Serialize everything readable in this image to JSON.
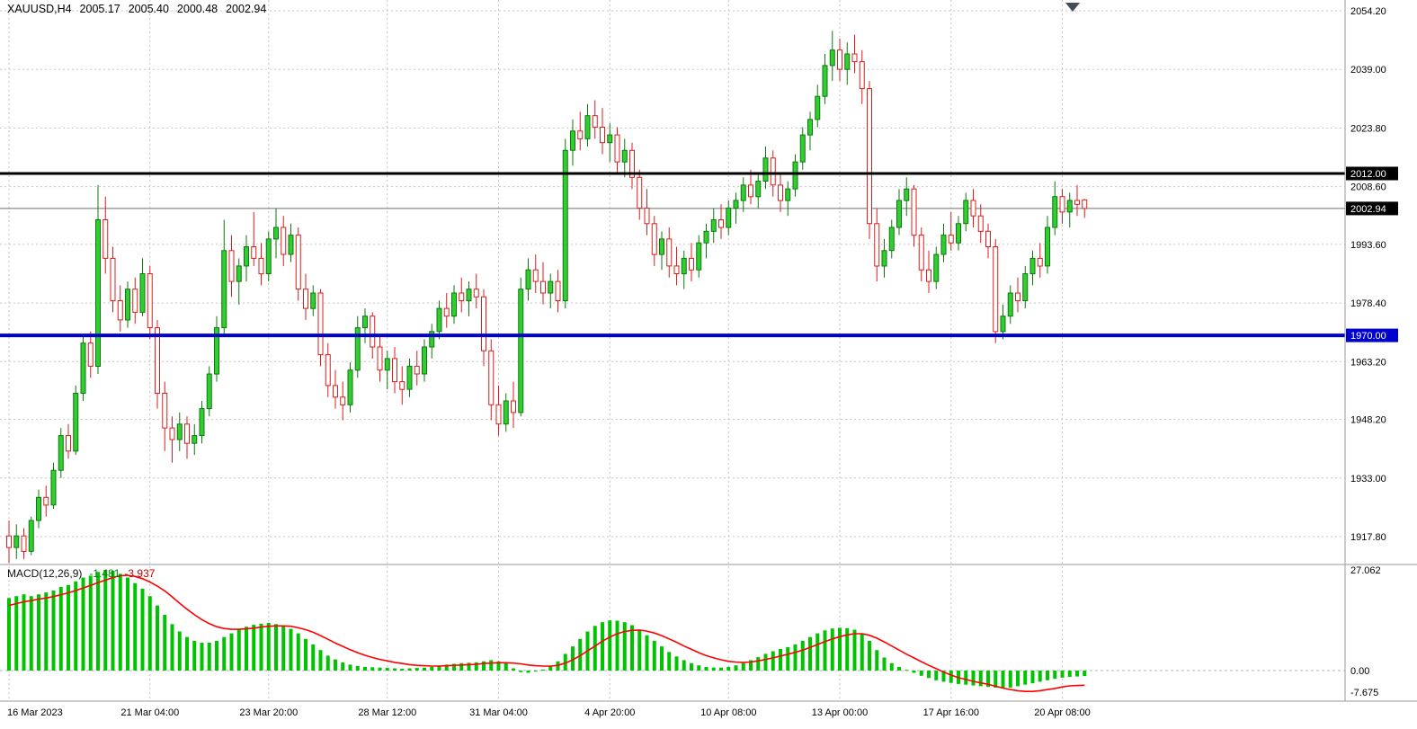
{
  "header": {
    "symbol_period": "XAUUSD,H4",
    "open": "2005.17",
    "high": "2005.40",
    "low": "2000.48",
    "close": "2002.94"
  },
  "macd_panel": {
    "label": "MACD(12,26,9)",
    "main_value": "-1.481",
    "signal_value": "-3.937"
  },
  "chart_data": {
    "type": "candlestick",
    "symbol": "XAUUSD",
    "timeframe": "H4",
    "grid": true,
    "ylim": [
      1911,
      2056
    ],
    "price_axis": {
      "ticks": [
        {
          "label": "2054.20",
          "price": 2054.2
        },
        {
          "label": "2039.00",
          "price": 2039.0
        },
        {
          "label": "2023.80",
          "price": 2023.8
        },
        {
          "label": "2008.60",
          "price": 2008.6
        },
        {
          "label": "1993.60",
          "price": 1993.6
        },
        {
          "label": "1978.40",
          "price": 1978.4
        },
        {
          "label": "1963.20",
          "price": 1963.2
        },
        {
          "label": "1948.20",
          "price": 1948.2
        },
        {
          "label": "1933.00",
          "price": 1933.0
        },
        {
          "label": "1917.80",
          "price": 1917.8
        }
      ]
    },
    "time_axis": {
      "labels": [
        {
          "bar": 0,
          "text": "16 Mar 2023"
        },
        {
          "bar": 19,
          "text": "21 Mar 04:00"
        },
        {
          "bar": 35,
          "text": "23 Mar 20:00"
        },
        {
          "bar": 51,
          "text": "28 Mar 12:00"
        },
        {
          "bar": 66,
          "text": "31 Mar 04:00"
        },
        {
          "bar": 81,
          "text": "4 Apr 20:00"
        },
        {
          "bar": 97,
          "text": "10 Apr 08:00"
        },
        {
          "bar": 112,
          "text": "13 Apr 00:00"
        },
        {
          "bar": 127,
          "text": "17 Apr 16:00"
        },
        {
          "bar": 142,
          "text": "20 Apr 08:00"
        }
      ]
    },
    "levels": [
      {
        "label": "2012.00",
        "price": 2012.0,
        "color": "#000000",
        "width": 3,
        "badge_bg": "#000000"
      },
      {
        "label": "1970.00",
        "price": 1970.0,
        "color": "#0101cd",
        "width": 4,
        "badge_bg": "#0101cd"
      }
    ],
    "last_price": {
      "label": "2002.94",
      "price": 2002.94,
      "line_color": "#6f6f6f",
      "badge_bg": "#000000"
    },
    "macd_axis": {
      "ticks": [
        {
          "label": "27.062",
          "value": 27.062
        },
        {
          "label": "0.00",
          "value": 0
        },
        {
          "label": "-7.675",
          "value": -7.675
        }
      ]
    },
    "candles": [
      [
        1918,
        1922,
        1911,
        1915
      ],
      [
        1915,
        1921,
        1912,
        1918
      ],
      [
        1918,
        1920,
        1912,
        1914
      ],
      [
        1914,
        1923,
        1913,
        1922
      ],
      [
        1922,
        1930,
        1920,
        1928
      ],
      [
        1928,
        1931,
        1923,
        1926
      ],
      [
        1926,
        1937,
        1925,
        1935
      ],
      [
        1935,
        1946,
        1933,
        1944
      ],
      [
        1944,
        1947,
        1938,
        1940
      ],
      [
        1940,
        1957,
        1939,
        1955
      ],
      [
        1955,
        1970,
        1953,
        1968
      ],
      [
        1968,
        1971,
        1959,
        1962
      ],
      [
        1962,
        2009,
        1960,
        2000
      ],
      [
        2000,
        2006,
        1986,
        1990
      ],
      [
        1990,
        1993,
        1976,
        1979
      ],
      [
        1979,
        1983,
        1971,
        1974
      ],
      [
        1974,
        1984,
        1972,
        1982
      ],
      [
        1982,
        1985,
        1973,
        1976
      ],
      [
        1976,
        1990,
        1975,
        1986
      ],
      [
        1986,
        1988,
        1969,
        1972
      ],
      [
        1972,
        1974,
        1951,
        1955
      ],
      [
        1955,
        1958,
        1940,
        1946
      ],
      [
        1946,
        1949,
        1937,
        1943
      ],
      [
        1943,
        1950,
        1940,
        1947
      ],
      [
        1947,
        1949,
        1938,
        1942
      ],
      [
        1942,
        1947,
        1939,
        1944
      ],
      [
        1944,
        1953,
        1942,
        1951
      ],
      [
        1951,
        1962,
        1949,
        1960
      ],
      [
        1960,
        1975,
        1958,
        1972
      ],
      [
        1972,
        2000,
        1970,
        1992
      ],
      [
        1992,
        1996,
        1980,
        1984
      ],
      [
        1984,
        1990,
        1978,
        1988
      ],
      [
        1988,
        1996,
        1984,
        1993
      ],
      [
        1993,
        2002,
        1988,
        1990
      ],
      [
        1990,
        1994,
        1983,
        1986
      ],
      [
        1986,
        1997,
        1984,
        1995
      ],
      [
        1995,
        2003,
        1990,
        1998
      ],
      [
        1998,
        2001,
        1988,
        1991
      ],
      [
        1991,
        1999,
        1989,
        1996
      ],
      [
        1996,
        1998,
        1979,
        1982
      ],
      [
        1982,
        1986,
        1974,
        1977
      ],
      [
        1977,
        1983,
        1975,
        1981
      ],
      [
        1981,
        1982,
        1962,
        1965
      ],
      [
        1965,
        1968,
        1954,
        1957
      ],
      [
        1957,
        1961,
        1951,
        1954
      ],
      [
        1954,
        1958,
        1948,
        1952
      ],
      [
        1952,
        1963,
        1950,
        1961
      ],
      [
        1961,
        1975,
        1959,
        1972
      ],
      [
        1972,
        1977,
        1968,
        1975
      ],
      [
        1975,
        1976,
        1964,
        1967
      ],
      [
        1967,
        1970,
        1958,
        1961
      ],
      [
        1961,
        1966,
        1956,
        1964
      ],
      [
        1964,
        1967,
        1955,
        1958
      ],
      [
        1958,
        1962,
        1952,
        1956
      ],
      [
        1956,
        1964,
        1954,
        1962
      ],
      [
        1962,
        1966,
        1957,
        1960
      ],
      [
        1960,
        1969,
        1958,
        1967
      ],
      [
        1967,
        1973,
        1964,
        1971
      ],
      [
        1971,
        1979,
        1969,
        1977
      ],
      [
        1977,
        1981,
        1972,
        1975
      ],
      [
        1975,
        1983,
        1973,
        1981
      ],
      [
        1981,
        1985,
        1976,
        1979
      ],
      [
        1979,
        1984,
        1975,
        1982
      ],
      [
        1982,
        1986,
        1977,
        1980
      ],
      [
        1980,
        1982,
        1962,
        1966
      ],
      [
        1966,
        1969,
        1948,
        1952
      ],
      [
        1952,
        1957,
        1944,
        1947
      ],
      [
        1947,
        1955,
        1945,
        1953
      ],
      [
        1953,
        1958,
        1946,
        1950
      ],
      [
        1950,
        1985,
        1949,
        1982
      ],
      [
        1982,
        1990,
        1979,
        1987
      ],
      [
        1987,
        1991,
        1981,
        1984
      ],
      [
        1984,
        1989,
        1978,
        1981
      ],
      [
        1981,
        1986,
        1977,
        1984
      ],
      [
        1984,
        1987,
        1976,
        1979
      ],
      [
        1979,
        2021,
        1977,
        2018
      ],
      [
        2018,
        2026,
        2014,
        2023
      ],
      [
        2023,
        2028,
        2018,
        2021
      ],
      [
        2021,
        2030,
        2019,
        2027
      ],
      [
        2027,
        2031,
        2021,
        2024
      ],
      [
        2024,
        2029,
        2017,
        2020
      ],
      [
        2020,
        2025,
        2015,
        2022
      ],
      [
        2022,
        2024,
        2012,
        2015
      ],
      [
        2015,
        2021,
        2011,
        2018
      ],
      [
        2018,
        2020,
        2008,
        2011
      ],
      [
        2011,
        2013,
        2000,
        2003
      ],
      [
        2003,
        2008,
        1996,
        1999
      ],
      [
        1999,
        2001,
        1988,
        1991
      ],
      [
        1991,
        1997,
        1987,
        1995
      ],
      [
        1995,
        1998,
        1985,
        1988
      ],
      [
        1988,
        1993,
        1983,
        1986
      ],
      [
        1986,
        1992,
        1982,
        1990
      ],
      [
        1990,
        1994,
        1984,
        1987
      ],
      [
        1987,
        1996,
        1985,
        1994
      ],
      [
        1994,
        1999,
        1990,
        1997
      ],
      [
        1997,
        2003,
        1994,
        2000
      ],
      [
        2000,
        2004,
        1995,
        1998
      ],
      [
        1998,
        2005,
        1996,
        2003
      ],
      [
        2003,
        2007,
        1999,
        2005
      ],
      [
        2005,
        2011,
        2002,
        2009
      ],
      [
        2009,
        2013,
        2004,
        2006
      ],
      [
        2006,
        2012,
        2003,
        2010
      ],
      [
        2010,
        2019,
        2008,
        2016
      ],
      [
        2016,
        2018,
        2006,
        2009
      ],
      [
        2009,
        2012,
        2002,
        2005
      ],
      [
        2005,
        2010,
        2001,
        2008
      ],
      [
        2008,
        2017,
        2006,
        2015
      ],
      [
        2015,
        2024,
        2013,
        2022
      ],
      [
        2022,
        2028,
        2018,
        2026
      ],
      [
        2026,
        2035,
        2024,
        2032
      ],
      [
        2032,
        2043,
        2030,
        2040
      ],
      [
        2040,
        2049,
        2036,
        2044
      ],
      [
        2044,
        2047,
        2036,
        2039
      ],
      [
        2039,
        2046,
        2035,
        2043
      ],
      [
        2043,
        2048,
        2038,
        2041
      ],
      [
        2041,
        2044,
        2030,
        2034
      ],
      [
        2034,
        2036,
        1995,
        1999
      ],
      [
        1999,
        2003,
        1984,
        1988
      ],
      [
        1988,
        1995,
        1985,
        1992
      ],
      [
        1992,
        2000,
        1990,
        1998
      ],
      [
        1998,
        2008,
        1996,
        2005
      ],
      [
        2005,
        2011,
        2001,
        2008
      ],
      [
        2008,
        2009,
        1993,
        1996
      ],
      [
        1996,
        1998,
        1984,
        1987
      ],
      [
        1987,
        1992,
        1981,
        1984
      ],
      [
        1984,
        1993,
        1982,
        1991
      ],
      [
        1991,
        1999,
        1989,
        1996
      ],
      [
        1996,
        2002,
        1992,
        1994
      ],
      [
        1994,
        2001,
        1992,
        1999
      ],
      [
        1999,
        2007,
        1997,
        2005
      ],
      [
        2005,
        2008,
        1998,
        2001
      ],
      [
        2001,
        2004,
        1994,
        1997
      ],
      [
        1997,
        1999,
        1990,
        1993
      ],
      [
        1993,
        1995,
        1968,
        1971
      ],
      [
        1971,
        1978,
        1969,
        1975
      ],
      [
        1975,
        1983,
        1973,
        1981
      ],
      [
        1981,
        1985,
        1976,
        1979
      ],
      [
        1979,
        1988,
        1977,
        1986
      ],
      [
        1986,
        1992,
        1983,
        1990
      ],
      [
        1990,
        1994,
        1985,
        1988
      ],
      [
        1988,
        2001,
        1986,
        1998
      ],
      [
        1998,
        2010,
        1996,
        2006
      ],
      [
        2006,
        2008,
        1999,
        2002
      ],
      [
        2002,
        2007,
        1998,
        2005
      ],
      [
        2005,
        2009,
        2001,
        2004
      ],
      [
        2005.17,
        2005.4,
        2000.48,
        2002.94
      ]
    ],
    "macd_histogram": [
      19.5,
      20,
      20.5,
      20,
      20.5,
      21,
      21.5,
      22.5,
      23,
      24,
      25,
      25.5,
      26.5,
      27.06,
      26.8,
      26,
      25,
      23.5,
      22,
      20,
      17.5,
      15,
      12.5,
      10.5,
      9,
      8,
      7.5,
      7.5,
      8,
      9,
      10,
      11,
      11.8,
      12.3,
      12.6,
      12.8,
      12.5,
      12,
      11.2,
      10,
      8.5,
      7,
      5.5,
      4,
      3,
      2.2,
      1.6,
      1.2,
      1,
      0.9,
      0.8,
      0.7,
      0.6,
      0.5,
      0.6,
      0.7,
      0.8,
      1,
      1.3,
      1.6,
      1.8,
      2,
      2.1,
      2.2,
      2.5,
      2.8,
      2.5,
      2,
      0.6,
      -0.4,
      -0.6,
      -0.2,
      0.3,
      1.2,
      2.5,
      4.5,
      6.5,
      8.5,
      10.5,
      12,
      13,
      13.5,
      13.4,
      13,
      12.2,
      11,
      9.5,
      8,
      6.5,
      5,
      3.8,
      2.8,
      2,
      1.4,
      1,
      0.8,
      0.8,
      1,
      1.4,
      2,
      2.8,
      3.6,
      4.5,
      5.2,
      5.8,
      6.3,
      7,
      8,
      9,
      10,
      10.8,
      11.3,
      11.5,
      11.4,
      11,
      10,
      8,
      5.5,
      3.5,
      2,
      1,
      0.2,
      -0.6,
      -1.4,
      -2,
      -2.6,
      -3,
      -3.3,
      -3.6,
      -3.8,
      -4,
      -4.2,
      -4.4,
      -4.6,
      -4.8,
      -4.6,
      -4.2,
      -3.8,
      -3.4,
      -3,
      -2.6,
      -2.2,
      -1.9,
      -1.7,
      -1.6,
      -1.481
    ],
    "macd_signal": [
      17.5,
      18,
      18.5,
      18.8,
      19.2,
      19.5,
      19.9,
      20.4,
      20.9,
      21.5,
      22.2,
      22.9,
      23.6,
      24.3,
      25,
      25.5,
      25.6,
      25.3,
      24.7,
      23.8,
      22.7,
      21.4,
      19.8,
      18.1,
      16.5,
      15,
      13.7,
      12.6,
      11.8,
      11.3,
      11.1,
      11.1,
      11.2,
      11.4,
      11.7,
      11.9,
      12,
      12,
      11.9,
      11.5,
      11,
      10.3,
      9.4,
      8.4,
      7.4,
      6.5,
      5.6,
      4.8,
      4.1,
      3.5,
      3,
      2.6,
      2.2,
      1.9,
      1.6,
      1.4,
      1.3,
      1.2,
      1.2,
      1.3,
      1.4,
      1.5,
      1.6,
      1.7,
      1.9,
      2,
      2.1,
      2.1,
      2,
      1.8,
      1.5,
      1.3,
      1.2,
      1.2,
      1.4,
      2,
      2.9,
      4,
      5.3,
      6.6,
      7.9,
      9,
      9.9,
      10.5,
      10.8,
      10.9,
      10.6,
      10.1,
      9.4,
      8.5,
      7.6,
      6.6,
      5.7,
      4.8,
      4,
      3.4,
      2.9,
      2.5,
      2.3,
      2.2,
      2.3,
      2.6,
      3,
      3.4,
      3.9,
      4.4,
      4.9,
      5.5,
      6.2,
      7,
      7.8,
      8.5,
      9.1,
      9.6,
      9.9,
      9.9,
      9.5,
      8.7,
      7.7,
      6.6,
      5.5,
      4.4,
      3.4,
      2.4,
      1.4,
      0.5,
      -0.4,
      -1.2,
      -1.9,
      -2.4,
      -2.9,
      -3.3,
      -3.7,
      -4.2,
      -4.7,
      -5.1,
      -5.4,
      -5.6,
      -5.6,
      -5.4,
      -5.1,
      -4.8,
      -4.4,
      -4.1,
      -4,
      -3.937
    ],
    "colors": {
      "bull_fill": "#32cd32",
      "bull_stroke": "#0a7a0a",
      "bear_fill": "#ffffff",
      "bear_stroke": "#dd1c1c",
      "hist": "#00c400",
      "signal": "#ff0000",
      "grid": "#c6c6c6",
      "separator": "#9a9a9a",
      "badge_text": "#ffffff",
      "axis_text": "#000000"
    }
  }
}
